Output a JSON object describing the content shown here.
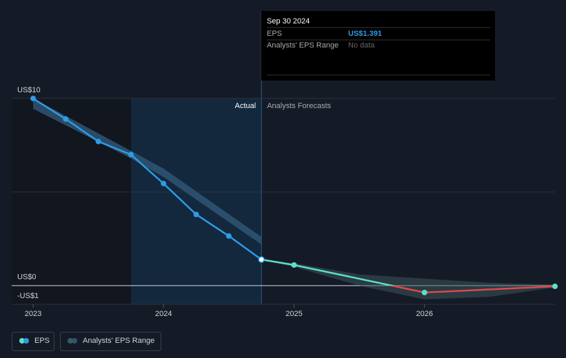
{
  "chart_data": {
    "type": "line",
    "tooltip": {
      "date": "Sep 30 2024",
      "eps_label": "EPS",
      "eps_value": "US$1.391",
      "range_label": "Analysts' EPS Range",
      "range_value": "No data"
    },
    "actual_label": "Actual",
    "forecast_label": "Analysts Forecasts",
    "eps": {
      "name": "EPS",
      "color": "#2e9be6",
      "x": [
        2023.0,
        2023.25,
        2023.5,
        2023.75,
        2024.0,
        2024.25,
        2024.5,
        2024.75
      ],
      "values": [
        10.0,
        8.9,
        7.7,
        7.0,
        5.45,
        3.8,
        2.65,
        1.391
      ]
    },
    "eps_forecast": {
      "color": "#5ce0c6",
      "negative_color": "#e0474c",
      "x": [
        2024.75,
        2025.0,
        2026.0,
        2027.0
      ],
      "values": [
        1.391,
        1.1,
        -0.37,
        -0.04
      ]
    },
    "range": {
      "name": "Analysts' EPS Range",
      "color": "#2f5573",
      "x": [
        2023.0,
        2023.75,
        2024.0,
        2024.75
      ],
      "low": [
        9.45,
        6.8,
        5.8,
        2.2
      ],
      "high": [
        10.0,
        7.2,
        6.25,
        2.6
      ]
    },
    "range_forecast": {
      "color": "#3d5a5e",
      "x": [
        2024.75,
        2025.0,
        2025.5,
        2026.0,
        2026.5,
        2027.0
      ],
      "low": [
        1.391,
        1.0,
        0.0,
        -0.74,
        -0.6,
        -0.1
      ],
      "high": [
        1.391,
        1.2,
        0.6,
        0.37,
        0.15,
        0.05
      ]
    },
    "xlim": [
      2022.836,
      2027.0
    ],
    "ylim": [
      -1,
      10
    ],
    "xticks": [
      2023,
      2024,
      2025,
      2026
    ],
    "yticks": [
      {
        "value": 10,
        "label": "US$10"
      },
      {
        "value": 0,
        "label": "US$0"
      },
      {
        "value": -1,
        "label": "-US$1"
      }
    ],
    "ygrid": [
      10,
      5,
      0,
      -1
    ]
  }
}
